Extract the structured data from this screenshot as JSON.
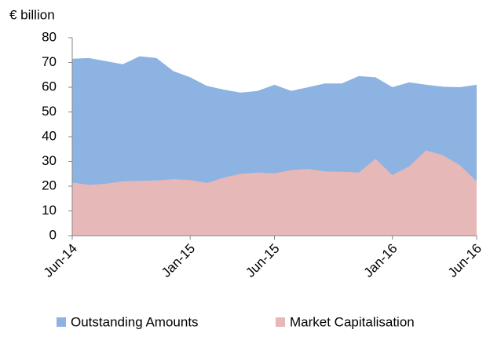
{
  "chart_data": {
    "type": "area",
    "y_label": "€ billion",
    "categories": [
      "Jun-14",
      null,
      null,
      null,
      null,
      null,
      null,
      "Jan-15",
      null,
      null,
      null,
      null,
      "Jun-15",
      null,
      null,
      null,
      null,
      null,
      null,
      "Jan-16",
      null,
      null,
      null,
      null,
      "Jun-16"
    ],
    "series": [
      {
        "name": "Outstanding Amounts",
        "color": "#8db3e2",
        "values": [
          71.5,
          71.8,
          70.5,
          69.3,
          72.5,
          71.8,
          66.5,
          64,
          60.5,
          59,
          57.8,
          58.5,
          61,
          58.5,
          60,
          61.5,
          61.5,
          64.5,
          64,
          60,
          62,
          61,
          60.2,
          60,
          61
        ]
      },
      {
        "name": "Market Capitalisation",
        "color": "#e6b8b7",
        "values": [
          21.5,
          20.5,
          21,
          22,
          22.2,
          22.3,
          22.8,
          22.5,
          21.3,
          23.5,
          25,
          25.5,
          25.2,
          26.5,
          27,
          26,
          25.8,
          25.5,
          31,
          24.5,
          28,
          34.5,
          32.5,
          28.5,
          22
        ]
      }
    ],
    "ylim": [
      0,
      80
    ],
    "yticks": [
      0,
      10,
      20,
      30,
      40,
      50,
      60,
      70,
      80
    ]
  }
}
